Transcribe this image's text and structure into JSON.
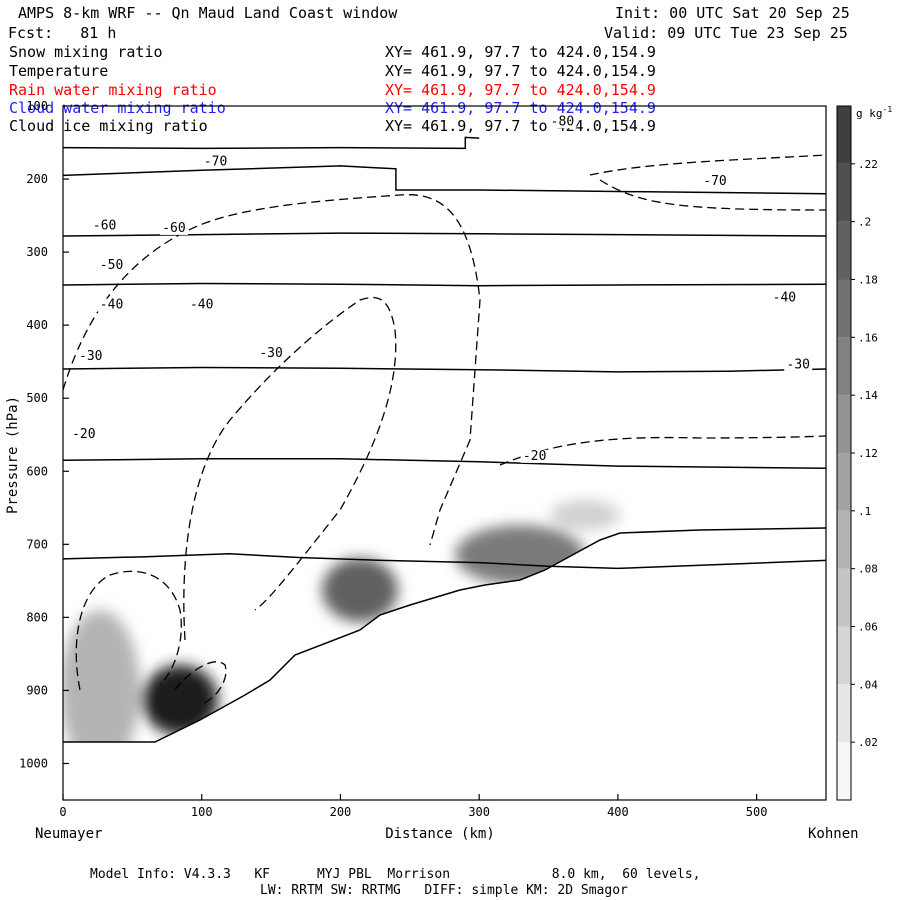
{
  "header": {
    "title": "AMPS 8-km WRF -- Qn Maud Land Coast window",
    "init": "Init: 00 UTC Sat 20 Sep 25",
    "fcst": "Fcst:   81 h",
    "valid": "Valid: 09 UTC Tue 23 Sep 25"
  },
  "fields": [
    {
      "name": "Snow mixing ratio",
      "xy": "XY= 461.9, 97.7 to 424.0,154.9",
      "color": "#000000"
    },
    {
      "name": "Temperature",
      "xy": "XY= 461.9, 97.7 to 424.0,154.9",
      "color": "#000000"
    },
    {
      "name": "Rain water mixing ratio",
      "xy": "XY= 461.9, 97.7 to 424.0,154.9",
      "color": "#ff0000"
    },
    {
      "name": "Cloud water mixing ratio",
      "xy": "XY= 461.9, 97.7 to 424.0,154.9",
      "color": "#2020ff"
    },
    {
      "name": "Cloud ice mixing ratio",
      "xy": "XY= 461.9, 97.7 to 424.0,154.9",
      "color": "#000000"
    }
  ],
  "footer": {
    "model_info": "Model Info: V4.3.3   KF      MYJ PBL  Morrison             8.0 km,  60 levels,",
    "physics": "LW: RRTM SW: RRTMG   DIFF: simple KM: 2D Smagor"
  },
  "chart_data": {
    "type": "contour",
    "title": "AMPS 8-km WRF -- Qn Maud Land Coast window",
    "xlabel": "Distance (km)",
    "ylabel": "Pressure (hPa)",
    "xlim": [
      0,
      550
    ],
    "ylim": [
      1050,
      100
    ],
    "x_ticks": [
      0,
      100,
      200,
      300,
      400,
      500
    ],
    "y_ticks": [
      100,
      200,
      300,
      400,
      500,
      600,
      700,
      800,
      900,
      1000
    ],
    "left_endpoint": "Neumayer",
    "right_endpoint": "Kohnen",
    "colorbar": {
      "unit": "g kg",
      "unit_exp": "-1",
      "ticks": [
        ".02",
        ".04",
        ".06",
        ".08",
        ".1",
        ".12",
        ".14",
        ".16",
        ".18",
        ".2",
        ".22"
      ],
      "values": [
        0.02,
        0.04,
        0.06,
        0.08,
        0.1,
        0.12,
        0.14,
        0.16,
        0.18,
        0.2,
        0.22
      ],
      "max": 0.24
    },
    "temperature_isotherms": [
      {
        "t": -80,
        "points": [
          [
            0,
            157
          ],
          [
            100,
            158
          ],
          [
            200,
            157
          ],
          [
            290,
            158
          ],
          [
            290,
            143
          ],
          [
            300,
            144
          ]
        ]
      },
      {
        "t": -70,
        "points": [
          [
            0,
            195
          ],
          [
            100,
            188
          ],
          [
            200,
            182
          ],
          [
            240,
            186
          ],
          [
            240,
            215
          ],
          [
            300,
            215
          ],
          [
            400,
            217
          ],
          [
            550,
            220
          ]
        ]
      },
      {
        "t": -60,
        "points": [
          [
            0,
            278
          ],
          [
            100,
            276
          ],
          [
            200,
            274
          ],
          [
            300,
            275
          ],
          [
            400,
            276
          ],
          [
            550,
            278
          ]
        ]
      },
      {
        "t": -50,
        "points": [
          [
            0,
            345
          ],
          [
            100,
            343
          ],
          [
            200,
            344
          ],
          [
            300,
            346
          ],
          [
            400,
            345
          ],
          [
            550,
            344
          ]
        ]
      },
      {
        "t": -40,
        "points": [
          [
            0,
            460
          ],
          [
            100,
            458
          ],
          [
            200,
            459
          ],
          [
            300,
            461
          ],
          [
            400,
            464
          ],
          [
            480,
            463
          ],
          [
            550,
            460
          ]
        ]
      },
      {
        "t": -30,
        "points": [
          [
            0,
            585
          ],
          [
            100,
            583
          ],
          [
            200,
            583
          ],
          [
            300,
            587
          ],
          [
            350,
            590
          ],
          [
            400,
            593
          ],
          [
            550,
            596
          ]
        ]
      },
      {
        "t": -20,
        "points": [
          [
            0,
            720
          ],
          [
            60,
            717
          ],
          [
            120,
            713
          ],
          [
            170,
            718
          ],
          [
            230,
            722
          ],
          [
            300,
            725
          ],
          [
            350,
            730
          ],
          [
            400,
            733
          ],
          [
            550,
            722
          ]
        ]
      }
    ],
    "snow_mixing_ratio_max": 0.22,
    "isotherm_labels": [
      -80,
      -70,
      -60,
      -50,
      -40,
      -30,
      -20
    ]
  }
}
